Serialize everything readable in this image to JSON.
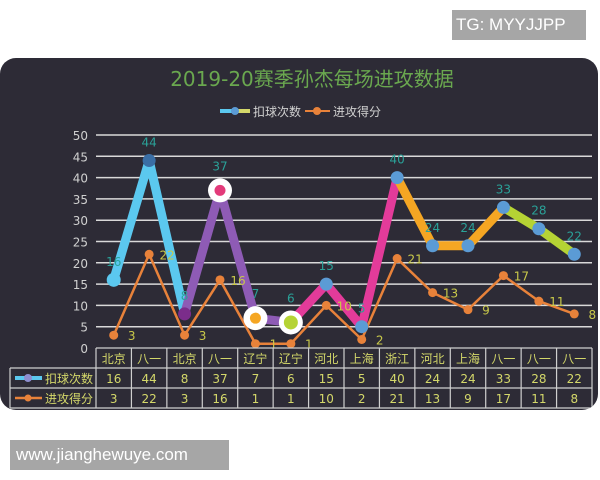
{
  "watermarks": {
    "top": "TG: MYYJJPP",
    "bottom": "www.jianghewuye.com"
  },
  "colors": {
    "background": "#2d2b36",
    "title": "#6aa84f",
    "grid": "#d9d9d9",
    "axis_text": "#d0d0d0",
    "table_text": "#d4d86a",
    "table_border": "#cfcfcf",
    "rebounds_label": "#2aa198",
    "points_line": "#e8823a",
    "points_label": "#c9c94a",
    "rebound_segments": [
      "#5bc8ef",
      "#5bc8ef",
      "#8e5bb5",
      "#8e5bb5",
      "#8e5bb5",
      "#e33b9a",
      "#e33b9a",
      "#e33b9a",
      "#f5a623",
      "#f5a623",
      "#f5a623",
      "#b5d334",
      "#b5d334",
      "#b5d334"
    ]
  },
  "chart_data": {
    "type": "line",
    "title": "2019-20赛季孙杰每场进攻数据",
    "xlabel": "",
    "ylabel": "",
    "ylim": [
      0,
      50
    ],
    "yticks": [
      0,
      5,
      10,
      15,
      20,
      25,
      30,
      35,
      40,
      45,
      50
    ],
    "grid": true,
    "legend_position": "top",
    "categories": [
      "北京",
      "八一",
      "北京",
      "八一",
      "辽宁",
      "辽宁",
      "河北",
      "上海",
      "浙江",
      "河北",
      "上海",
      "八一",
      "八一",
      "八一"
    ],
    "series": [
      {
        "name": "扣球次数",
        "values": [
          16,
          44,
          8,
          37,
          7,
          6,
          15,
          5,
          40,
          24,
          24,
          33,
          28,
          22
        ]
      },
      {
        "name": "进攻得分",
        "values": [
          3,
          22,
          3,
          16,
          1,
          1,
          10,
          2,
          21,
          13,
          9,
          17,
          11,
          8
        ]
      }
    ],
    "data_table": true
  }
}
